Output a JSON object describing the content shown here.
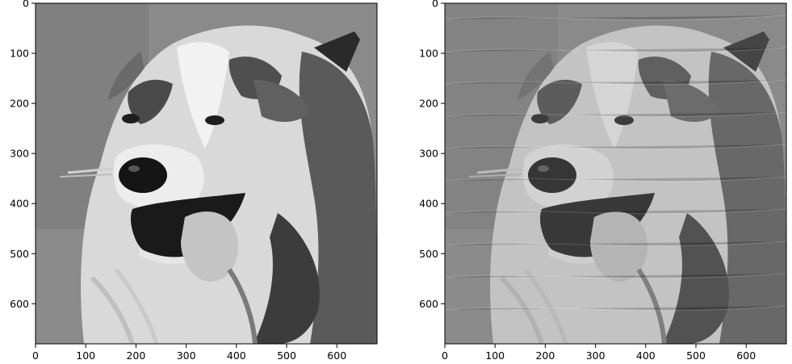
{
  "figure": {
    "panels": [
      {
        "name": "left",
        "subject": "dog-photo-original",
        "x_ticks": [
          "0",
          "100",
          "200",
          "300",
          "400",
          "500",
          "600"
        ],
        "y_ticks": [
          "0",
          "100",
          "200",
          "300",
          "400",
          "500",
          "600"
        ],
        "x_tick_values": [
          0,
          100,
          200,
          300,
          400,
          500,
          600
        ],
        "y_tick_values": [
          0,
          100,
          200,
          300,
          400,
          500,
          600
        ],
        "x_extent": [
          0,
          680
        ],
        "y_extent": [
          0,
          680
        ]
      },
      {
        "name": "right",
        "subject": "dog-photo-processed",
        "x_ticks": [
          "0",
          "100",
          "200",
          "300",
          "400",
          "500",
          "600"
        ],
        "y_ticks": [
          "0",
          "100",
          "200",
          "300",
          "400",
          "500",
          "600"
        ],
        "x_tick_values": [
          0,
          100,
          200,
          300,
          400,
          500,
          600
        ],
        "y_tick_values": [
          0,
          100,
          200,
          300,
          400,
          500,
          600
        ],
        "x_extent": [
          0,
          680
        ],
        "y_extent": [
          0,
          680
        ]
      }
    ],
    "colormap": "grayscale"
  }
}
